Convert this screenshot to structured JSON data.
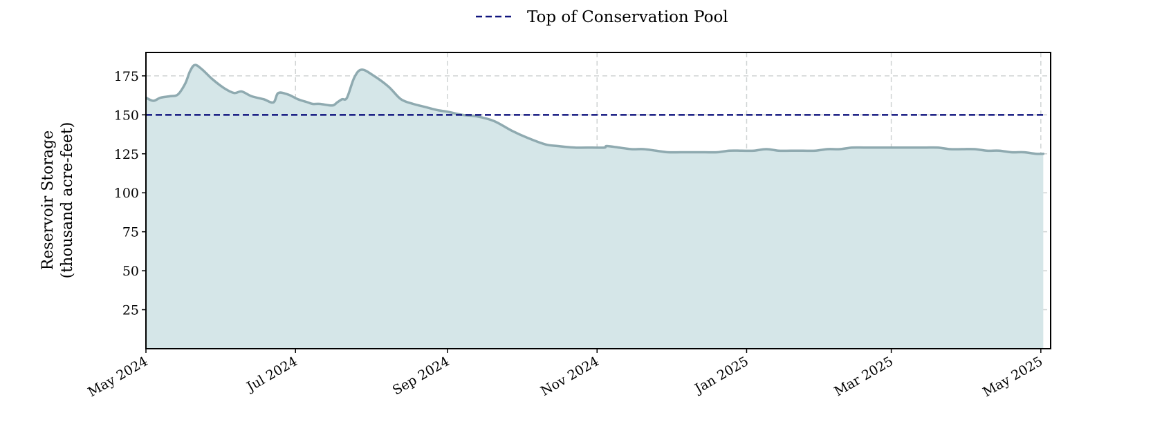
{
  "chart_data": {
    "type": "area",
    "title": "",
    "xlabel": "",
    "ylabel_lines": [
      "Reservoir Storage",
      "(thousand acre-feet)"
    ],
    "xlim": [
      "2024-05-01",
      "2025-05-05"
    ],
    "ylim": [
      0,
      190
    ],
    "y_ticks": [
      25,
      50,
      75,
      100,
      125,
      150,
      175
    ],
    "x_ticks": [
      {
        "date": "2024-05-01",
        "label": "May 2024"
      },
      {
        "date": "2024-07-01",
        "label": "Jul 2024"
      },
      {
        "date": "2024-09-01",
        "label": "Sep 2024"
      },
      {
        "date": "2024-11-01",
        "label": "Nov 2024"
      },
      {
        "date": "2025-01-01",
        "label": "Jan 2025"
      },
      {
        "date": "2025-03-01",
        "label": "Mar 2025"
      },
      {
        "date": "2025-05-01",
        "label": "May 2025"
      }
    ],
    "grid": true,
    "legend_position": "top-center",
    "series": [
      {
        "color": "#8faab0",
        "fill_color": "#d5e6e8",
        "x": [
          "2024-05-01",
          "2024-05-04",
          "2024-05-07",
          "2024-05-11",
          "2024-05-14",
          "2024-05-17",
          "2024-05-19",
          "2024-05-21",
          "2024-05-24",
          "2024-05-28",
          "2024-06-02",
          "2024-06-06",
          "2024-06-09",
          "2024-06-13",
          "2024-06-18",
          "2024-06-22",
          "2024-06-24",
          "2024-06-28",
          "2024-07-02",
          "2024-07-06",
          "2024-07-08",
          "2024-07-11",
          "2024-07-16",
          "2024-07-18",
          "2024-07-20",
          "2024-07-22",
          "2024-07-25",
          "2024-07-28",
          "2024-08-02",
          "2024-08-08",
          "2024-08-13",
          "2024-08-18",
          "2024-08-23",
          "2024-08-28",
          "2024-09-01",
          "2024-09-07",
          "2024-09-13",
          "2024-09-20",
          "2024-09-27",
          "2024-10-04",
          "2024-10-11",
          "2024-10-16",
          "2024-10-23",
          "2024-10-30",
          "2024-11-04",
          "2024-11-05",
          "2024-11-10",
          "2024-11-15",
          "2024-11-20",
          "2024-11-25",
          "2024-11-30",
          "2024-12-05",
          "2024-12-10",
          "2024-12-15",
          "2024-12-20",
          "2024-12-25",
          "2024-12-30",
          "2025-01-04",
          "2025-01-09",
          "2025-01-14",
          "2025-01-19",
          "2025-01-24",
          "2025-01-29",
          "2025-02-03",
          "2025-02-08",
          "2025-02-13",
          "2025-02-18",
          "2025-02-23",
          "2025-02-28",
          "2025-03-05",
          "2025-03-10",
          "2025-03-15",
          "2025-03-20",
          "2025-03-25",
          "2025-03-30",
          "2025-04-04",
          "2025-04-09",
          "2025-04-14",
          "2025-04-19",
          "2025-04-24",
          "2025-04-29",
          "2025-05-02"
        ],
        "values": [
          161,
          159,
          161,
          162,
          163,
          170,
          178,
          182,
          179,
          173,
          167,
          164,
          165,
          162,
          160,
          158,
          164,
          163,
          160,
          158,
          157,
          157,
          156,
          158,
          160,
          161,
          174,
          179,
          175,
          168,
          160,
          157,
          155,
          153,
          152,
          150,
          149,
          146,
          140,
          135,
          131,
          130,
          129,
          129,
          129,
          130,
          129,
          128,
          128,
          127,
          126,
          126,
          126,
          126,
          126,
          127,
          127,
          127,
          128,
          127,
          127,
          127,
          127,
          128,
          128,
          129,
          129,
          129,
          129,
          129,
          129,
          129,
          129,
          128,
          128,
          128,
          127,
          127,
          126,
          126,
          125,
          125
        ]
      }
    ],
    "reference_line": {
      "name": "Top of Conservation Pool",
      "value": 150,
      "color": "#10147e",
      "style": "dashed"
    }
  }
}
